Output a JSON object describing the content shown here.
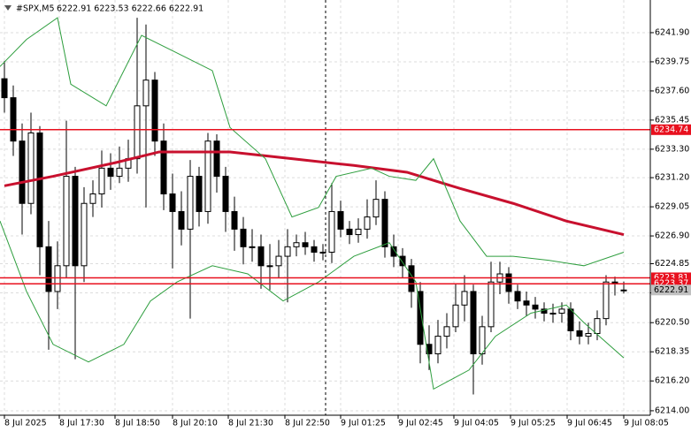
{
  "chart_data": {
    "type": "candlestick",
    "title": "#SPX,M5",
    "subtitle": "6222.91 6223.53 6222.66 6222.91",
    "open": [
      6238.5,
      6237.1,
      6233.9,
      6229.3,
      6234.5,
      6226.1,
      6222.8,
      6224.7,
      6231.3,
      6224.7,
      6229.3,
      6230.0,
      6231.9,
      6231.3,
      6231.9,
      6232.6,
      6236.5,
      6238.4,
      6233.9,
      6230.0,
      6228.7,
      6227.4,
      6231.3,
      6228.7,
      6233.9,
      6231.3,
      6228.7,
      6227.4,
      6226.1,
      6226.1,
      6224.7,
      6224.7,
      6225.4,
      6226.1,
      6226.4,
      6226.1,
      6225.7,
      6225.7,
      6228.7,
      6227.4,
      6227.0,
      6227.4,
      6228.3,
      6229.6,
      6226.1,
      6225.4,
      6224.7,
      6222.8,
      6218.9,
      6218.2,
      6219.5,
      6220.2,
      6221.8,
      6222.8,
      6218.2,
      6220.2,
      6223.5,
      6224.1,
      6222.8,
      6222.1,
      6221.8,
      6221.5,
      6221.2,
      6221.2,
      6221.5,
      6219.9,
      6219.5,
      6219.7,
      6220.8,
      6223.5,
      6222.91
    ],
    "high": [
      6239.8,
      6238.0,
      6235.2,
      6236.0,
      6235.0,
      6228.0,
      6226.5,
      6235.4,
      6232.0,
      6230.5,
      6231.0,
      6233.2,
      6233.0,
      6233.5,
      6234.0,
      6243.0,
      6242.5,
      6239.0,
      6235.2,
      6231.5,
      6230.2,
      6232.5,
      6232.0,
      6234.5,
      6234.4,
      6232.0,
      6229.8,
      6228.3,
      6227.4,
      6227.0,
      6226.3,
      6226.6,
      6227.4,
      6227.0,
      6227.2,
      6226.6,
      6226.3,
      6230.8,
      6229.5,
      6228.0,
      6228.2,
      6229.6,
      6231.0,
      6230.2,
      6227.0,
      6226.0,
      6225.2,
      6223.5,
      6220.3,
      6220.7,
      6221.2,
      6223.4,
      6224.0,
      6223.3,
      6221.0,
      6225.0,
      6225.0,
      6224.6,
      6223.3,
      6222.8,
      6222.4,
      6222.0,
      6221.9,
      6222.0,
      6222.0,
      6220.6,
      6220.5,
      6221.4,
      6224.0,
      6223.9,
      6223.53
    ],
    "low": [
      6236.0,
      6232.8,
      6227.0,
      6228.5,
      6224.0,
      6218.5,
      6221.5,
      6223.8,
      6217.8,
      6223.5,
      6228.3,
      6229.0,
      6230.3,
      6230.8,
      6230.9,
      6231.5,
      6229.0,
      6232.8,
      6228.8,
      6224.5,
      6226.2,
      6220.8,
      6227.6,
      6227.8,
      6230.1,
      6227.2,
      6225.8,
      6224.8,
      6225.0,
      6223.0,
      6222.9,
      6223.8,
      6222.0,
      6225.4,
      6225.5,
      6225.0,
      6225.1,
      6224.9,
      6226.8,
      6226.3,
      6226.4,
      6226.7,
      6227.7,
      6225.3,
      6224.6,
      6223.8,
      6221.6,
      6217.5,
      6217.0,
      6217.5,
      6218.6,
      6219.8,
      6220.6,
      6215.2,
      6217.4,
      6219.8,
      6222.6,
      6221.9,
      6221.5,
      6221.0,
      6220.8,
      6220.6,
      6220.5,
      6220.5,
      6219.2,
      6218.9,
      6218.9,
      6219.2,
      6220.3,
      6222.5,
      6222.66
    ],
    "close": [
      6237.1,
      6233.9,
      6229.3,
      6234.5,
      6226.1,
      6222.8,
      6224.7,
      6231.3,
      6224.7,
      6229.3,
      6230.0,
      6231.9,
      6231.3,
      6231.9,
      6232.6,
      6236.5,
      6238.4,
      6233.9,
      6230.0,
      6228.7,
      6227.4,
      6231.3,
      6228.7,
      6233.9,
      6231.3,
      6228.7,
      6227.4,
      6226.1,
      6226.1,
      6224.7,
      6224.7,
      6225.4,
      6226.1,
      6226.4,
      6226.1,
      6225.7,
      6225.7,
      6228.7,
      6227.4,
      6227.0,
      6227.4,
      6228.3,
      6229.6,
      6226.1,
      6225.4,
      6224.7,
      6222.8,
      6218.9,
      6218.2,
      6219.5,
      6220.2,
      6221.8,
      6222.8,
      6218.2,
      6220.2,
      6223.5,
      6224.1,
      6222.8,
      6222.1,
      6221.8,
      6221.5,
      6221.2,
      6221.2,
      6221.5,
      6219.9,
      6219.5,
      6219.7,
      6220.8,
      6223.5,
      6223.4,
      6222.91
    ],
    "series": [
      {
        "color": "#c8102e",
        "width": 3,
        "x": [
          0,
          5.5,
          12.5,
          17.5,
          25.5,
          32.5,
          39.5,
          45.5,
          51.5,
          57.5,
          63.5,
          70
        ],
        "values": [
          6230.6,
          6231.3,
          6232.3,
          6233.1,
          6233.1,
          6232.6,
          6232.1,
          6231.6,
          6230.4,
          6229.3,
          6228.0,
          6227.0
        ]
      },
      {
        "color": "#2e9e3e",
        "width": 1,
        "x": [
          -0.5,
          2.5,
          6,
          7.5,
          11.5,
          15.5,
          19.5,
          23.5,
          25.5,
          29.5,
          32.5,
          35.5,
          37.5,
          41.5,
          43.5,
          46.5,
          48.5,
          51.5,
          54.5,
          57.5,
          61.5,
          65.5,
          70
        ],
        "values": [
          6239.4,
          6241.4,
          6243.0,
          6238.1,
          6236.5,
          6241.7,
          6240.4,
          6239.1,
          6234.9,
          6232.6,
          6228.3,
          6229.0,
          6231.3,
          6231.9,
          6231.3,
          6231.0,
          6232.6,
          6228.0,
          6225.4,
          6225.4,
          6225.1,
          6224.7,
          6225.7
        ]
      },
      {
        "color": "#2e9e3e",
        "width": 1,
        "x": [
          -0.5,
          2.5,
          5.5,
          9.5,
          13.5,
          16.5,
          19.5,
          23.5,
          27.5,
          31.5,
          35.5,
          39.5,
          43.5,
          46.5,
          48.5,
          50.5,
          52.5,
          55.5,
          59.5,
          63.5,
          65.5,
          70
        ],
        "values": [
          6228.0,
          6222.8,
          6218.9,
          6217.6,
          6218.9,
          6222.1,
          6223.5,
          6224.7,
          6224.1,
          6222.1,
          6223.5,
          6225.4,
          6226.4,
          6223.5,
          6215.6,
          6216.3,
          6217.0,
          6219.5,
          6221.2,
          6221.8,
          6220.5,
          6217.9
        ]
      }
    ],
    "levels": [
      {
        "value": 6234.74,
        "color": "#e8101e"
      },
      {
        "value": 6223.81,
        "color": "#e8101e"
      },
      {
        "value": 6223.37,
        "color": "#e8101e"
      }
    ],
    "current_price": 6222.91,
    "xlim": [
      -0.5,
      73
    ],
    "ylim": [
      6213.67,
      6244.31
    ],
    "xticks": [
      {
        "value": 0,
        "label": "8 Jul 2025"
      },
      {
        "value": 6.2,
        "label": "8 Jul 17:30"
      },
      {
        "value": 12.5,
        "label": "8 Jul 18:50"
      },
      {
        "value": 19,
        "label": "8 Jul 20:10"
      },
      {
        "value": 25.3,
        "label": "8 Jul 21:30"
      },
      {
        "value": 31.7,
        "label": "8 Jul 22:50"
      },
      {
        "value": 38,
        "label": "9 Jul 01:25"
      },
      {
        "value": 44.5,
        "label": "9 Jul 02:45"
      },
      {
        "value": 50.8,
        "label": "9 Jul 04:05"
      },
      {
        "value": 57.2,
        "label": "9 Jul 05:25"
      },
      {
        "value": 63.6,
        "label": "9 Jul 06:45"
      },
      {
        "value": 70,
        "label": "9 Jul 08:05"
      }
    ],
    "yticks": [
      {
        "value": 6214,
        "label": "6214.00"
      },
      {
        "value": 6216.2,
        "label": "6216.20"
      },
      6218.35,
      {
        "value": 6220.5,
        "label": "6220.50"
      },
      {
        "value": 6222.7,
        "label": "6222.70"
      },
      6224.85,
      {
        "value": 6226.9,
        "label": "6226.90"
      },
      6229.05,
      {
        "value": 6231.2,
        "label": "6231.20"
      },
      {
        "value": 6233.3,
        "label": "6233.30"
      },
      6235.45,
      {
        "value": 6237.6,
        "label": "6237.60"
      },
      6239.75,
      {
        "value": 6241.9,
        "label": "6241.90"
      }
    ],
    "grid": true
  }
}
